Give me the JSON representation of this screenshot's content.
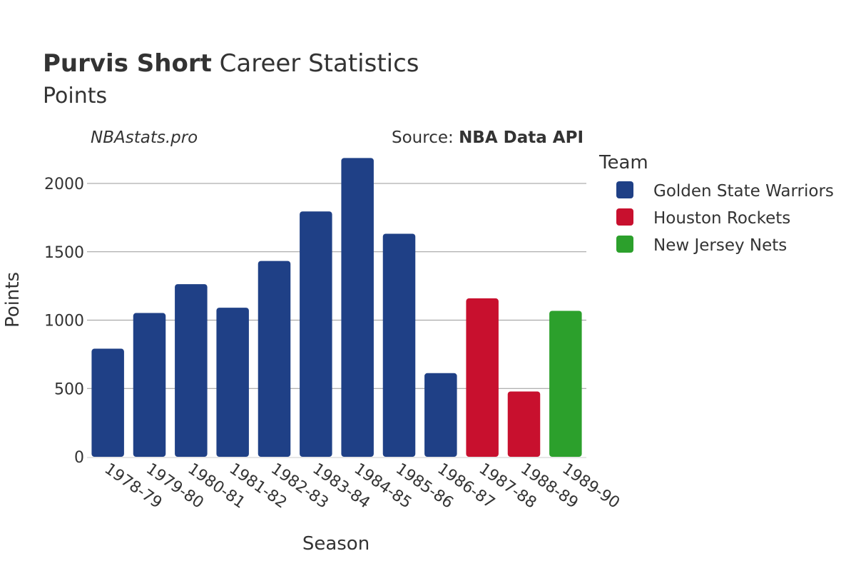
{
  "header": {
    "title_bold": "Purvis Short",
    "title_rest": " Career Statistics",
    "subtitle": "Points",
    "watermark": "NBAstats.pro",
    "source_prefix": "Source: ",
    "source_name": "NBA Data API"
  },
  "legend": {
    "title": "Team",
    "items": [
      {
        "label": "Golden State Warriors",
        "color": "#1f4086"
      },
      {
        "label": "Houston Rockets",
        "color": "#c8102e"
      },
      {
        "label": "New Jersey Nets",
        "color": "#2ca02c"
      }
    ]
  },
  "chart_data": {
    "type": "bar",
    "title": "Purvis Short Career Statistics",
    "subtitle": "Points",
    "xlabel": "Season",
    "ylabel": "Points",
    "ylim": [
      0,
      2200
    ],
    "yticks": [
      0,
      500,
      1000,
      1500,
      2000
    ],
    "grid": true,
    "legend_position": "right",
    "categories": [
      "1978-79",
      "1979-80",
      "1980-81",
      "1981-82",
      "1982-83",
      "1983-84",
      "1984-85",
      "1985-86",
      "1986-87",
      "1987-88",
      "1988-89",
      "1989-90"
    ],
    "values": [
      791,
      1052,
      1263,
      1091,
      1433,
      1795,
      2186,
      1632,
      612,
      1159,
      478,
      1068
    ],
    "teams": [
      "Golden State Warriors",
      "Golden State Warriors",
      "Golden State Warriors",
      "Golden State Warriors",
      "Golden State Warriors",
      "Golden State Warriors",
      "Golden State Warriors",
      "Golden State Warriors",
      "Golden State Warriors",
      "Houston Rockets",
      "Houston Rockets",
      "New Jersey Nets"
    ]
  }
}
